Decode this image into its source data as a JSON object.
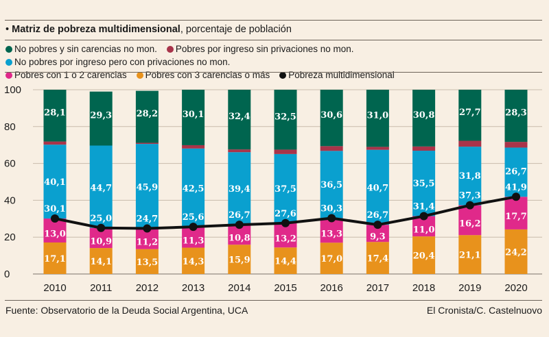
{
  "title": {
    "bold": "Matriz de pobreza multidimensional",
    "rest": ", porcentaje de población"
  },
  "source": "Fuente: Observatorio de la Deuda Social Argentina, UCA",
  "credit": "El Cronista/C. Castelnuovo",
  "colors": {
    "no_pobres_sin_carencias": "#00654f",
    "pobres_ingreso_sin_privaciones": "#a8344a",
    "no_pobres_con_privaciones": "#0aa0cf",
    "pobres_1_2": "#e0298a",
    "pobres_3_mas": "#e8921c",
    "pobreza_multi": "#111111"
  },
  "chart_data": {
    "type": "bar",
    "stacked": true,
    "title": "Matriz de pobreza multidimensional, porcentaje de población",
    "xlabel": "",
    "ylabel": "",
    "ylim": [
      0,
      100
    ],
    "yticks": [
      0,
      20,
      40,
      60,
      80,
      100
    ],
    "grid": true,
    "legend_position": "top",
    "categories": [
      "2010",
      "2011",
      "2012",
      "2013",
      "2014",
      "2015",
      "2016",
      "2017",
      "2018",
      "2019",
      "2020"
    ],
    "series": [
      {
        "key": "pobres_3_mas",
        "name": "Pobres con 3 carencias o más",
        "values": [
          17.1,
          14.1,
          13.5,
          14.3,
          15.9,
          14.4,
          17.0,
          17.4,
          20.4,
          21.1,
          24.2
        ],
        "labels": [
          "17,1",
          "14,1",
          "13,5",
          "14,3",
          "15,9",
          "14,4",
          "17,0",
          "17,4",
          "20,4",
          "21,1",
          "24,2"
        ]
      },
      {
        "key": "pobres_1_2",
        "name": "Pobres con 1 o 2 carencias",
        "values": [
          13.0,
          10.9,
          11.2,
          11.3,
          10.8,
          13.2,
          13.3,
          9.3,
          11.0,
          16.2,
          17.7
        ],
        "labels": [
          "13,0",
          "10,9",
          "11,2",
          "11,3",
          "10,8",
          "13,2",
          "13,3",
          "9,3",
          "11,0",
          "16,2",
          "17,7"
        ]
      },
      {
        "key": "no_pobres_con_privaciones",
        "name": "No pobres por ingreso pero con privaciones no mon.",
        "values": [
          40.1,
          44.7,
          45.9,
          42.5,
          39.4,
          37.5,
          36.5,
          40.7,
          35.5,
          31.8,
          26.7
        ],
        "labels": [
          "40,1",
          "44,7",
          "45,9",
          "42,5",
          "39,4",
          "37,5",
          "36,5",
          "40,7",
          "35,5",
          "31,8",
          "26,7"
        ]
      },
      {
        "key": "pobres_ingreso_sin_privaciones",
        "name": "Pobres por ingreso sin privaciones no mon.",
        "values": [
          1.7,
          0.0,
          0.6,
          1.8,
          1.5,
          2.4,
          2.6,
          1.6,
          2.3,
          3.2,
          3.1
        ],
        "labels": []
      },
      {
        "key": "no_pobres_sin_carencias",
        "name": "No pobres y sin carencias no mon.",
        "values": [
          28.1,
          29.3,
          28.2,
          30.1,
          32.4,
          32.5,
          30.6,
          31.0,
          30.8,
          27.7,
          28.3
        ],
        "labels": [
          "28,1",
          "29,3",
          "28,2",
          "30,1",
          "32,4",
          "32,5",
          "30,6",
          "31,0",
          "30,8",
          "27,7",
          "28,3"
        ]
      }
    ],
    "line": {
      "key": "pobreza_multi",
      "name": "Pobreza multidimensional",
      "values": [
        30.1,
        25.0,
        24.7,
        25.6,
        26.7,
        27.6,
        30.3,
        26.7,
        31.4,
        37.3,
        41.9
      ],
      "labels": [
        "30,1",
        "25,0",
        "24,7",
        "25,6",
        "26,7",
        "27,6",
        "30,3",
        "26,7",
        "31,4",
        "37,3",
        "41,9"
      ]
    }
  },
  "legend": [
    {
      "key": "no_pobres_sin_carencias",
      "label": "No pobres y sin carencias no mon."
    },
    {
      "key": "pobres_ingreso_sin_privaciones",
      "label": "Pobres por ingreso sin privaciones no mon."
    },
    {
      "key": "no_pobres_con_privaciones",
      "label": "No pobres por ingreso pero con privaciones no mon."
    },
    {
      "key": "pobres_1_2",
      "label": "Pobres con 1 o 2 carencias"
    },
    {
      "key": "pobres_3_mas",
      "label": "Pobres con 3 carencias o más"
    },
    {
      "key": "pobreza_multi",
      "label": "Pobreza multidimensional"
    }
  ]
}
